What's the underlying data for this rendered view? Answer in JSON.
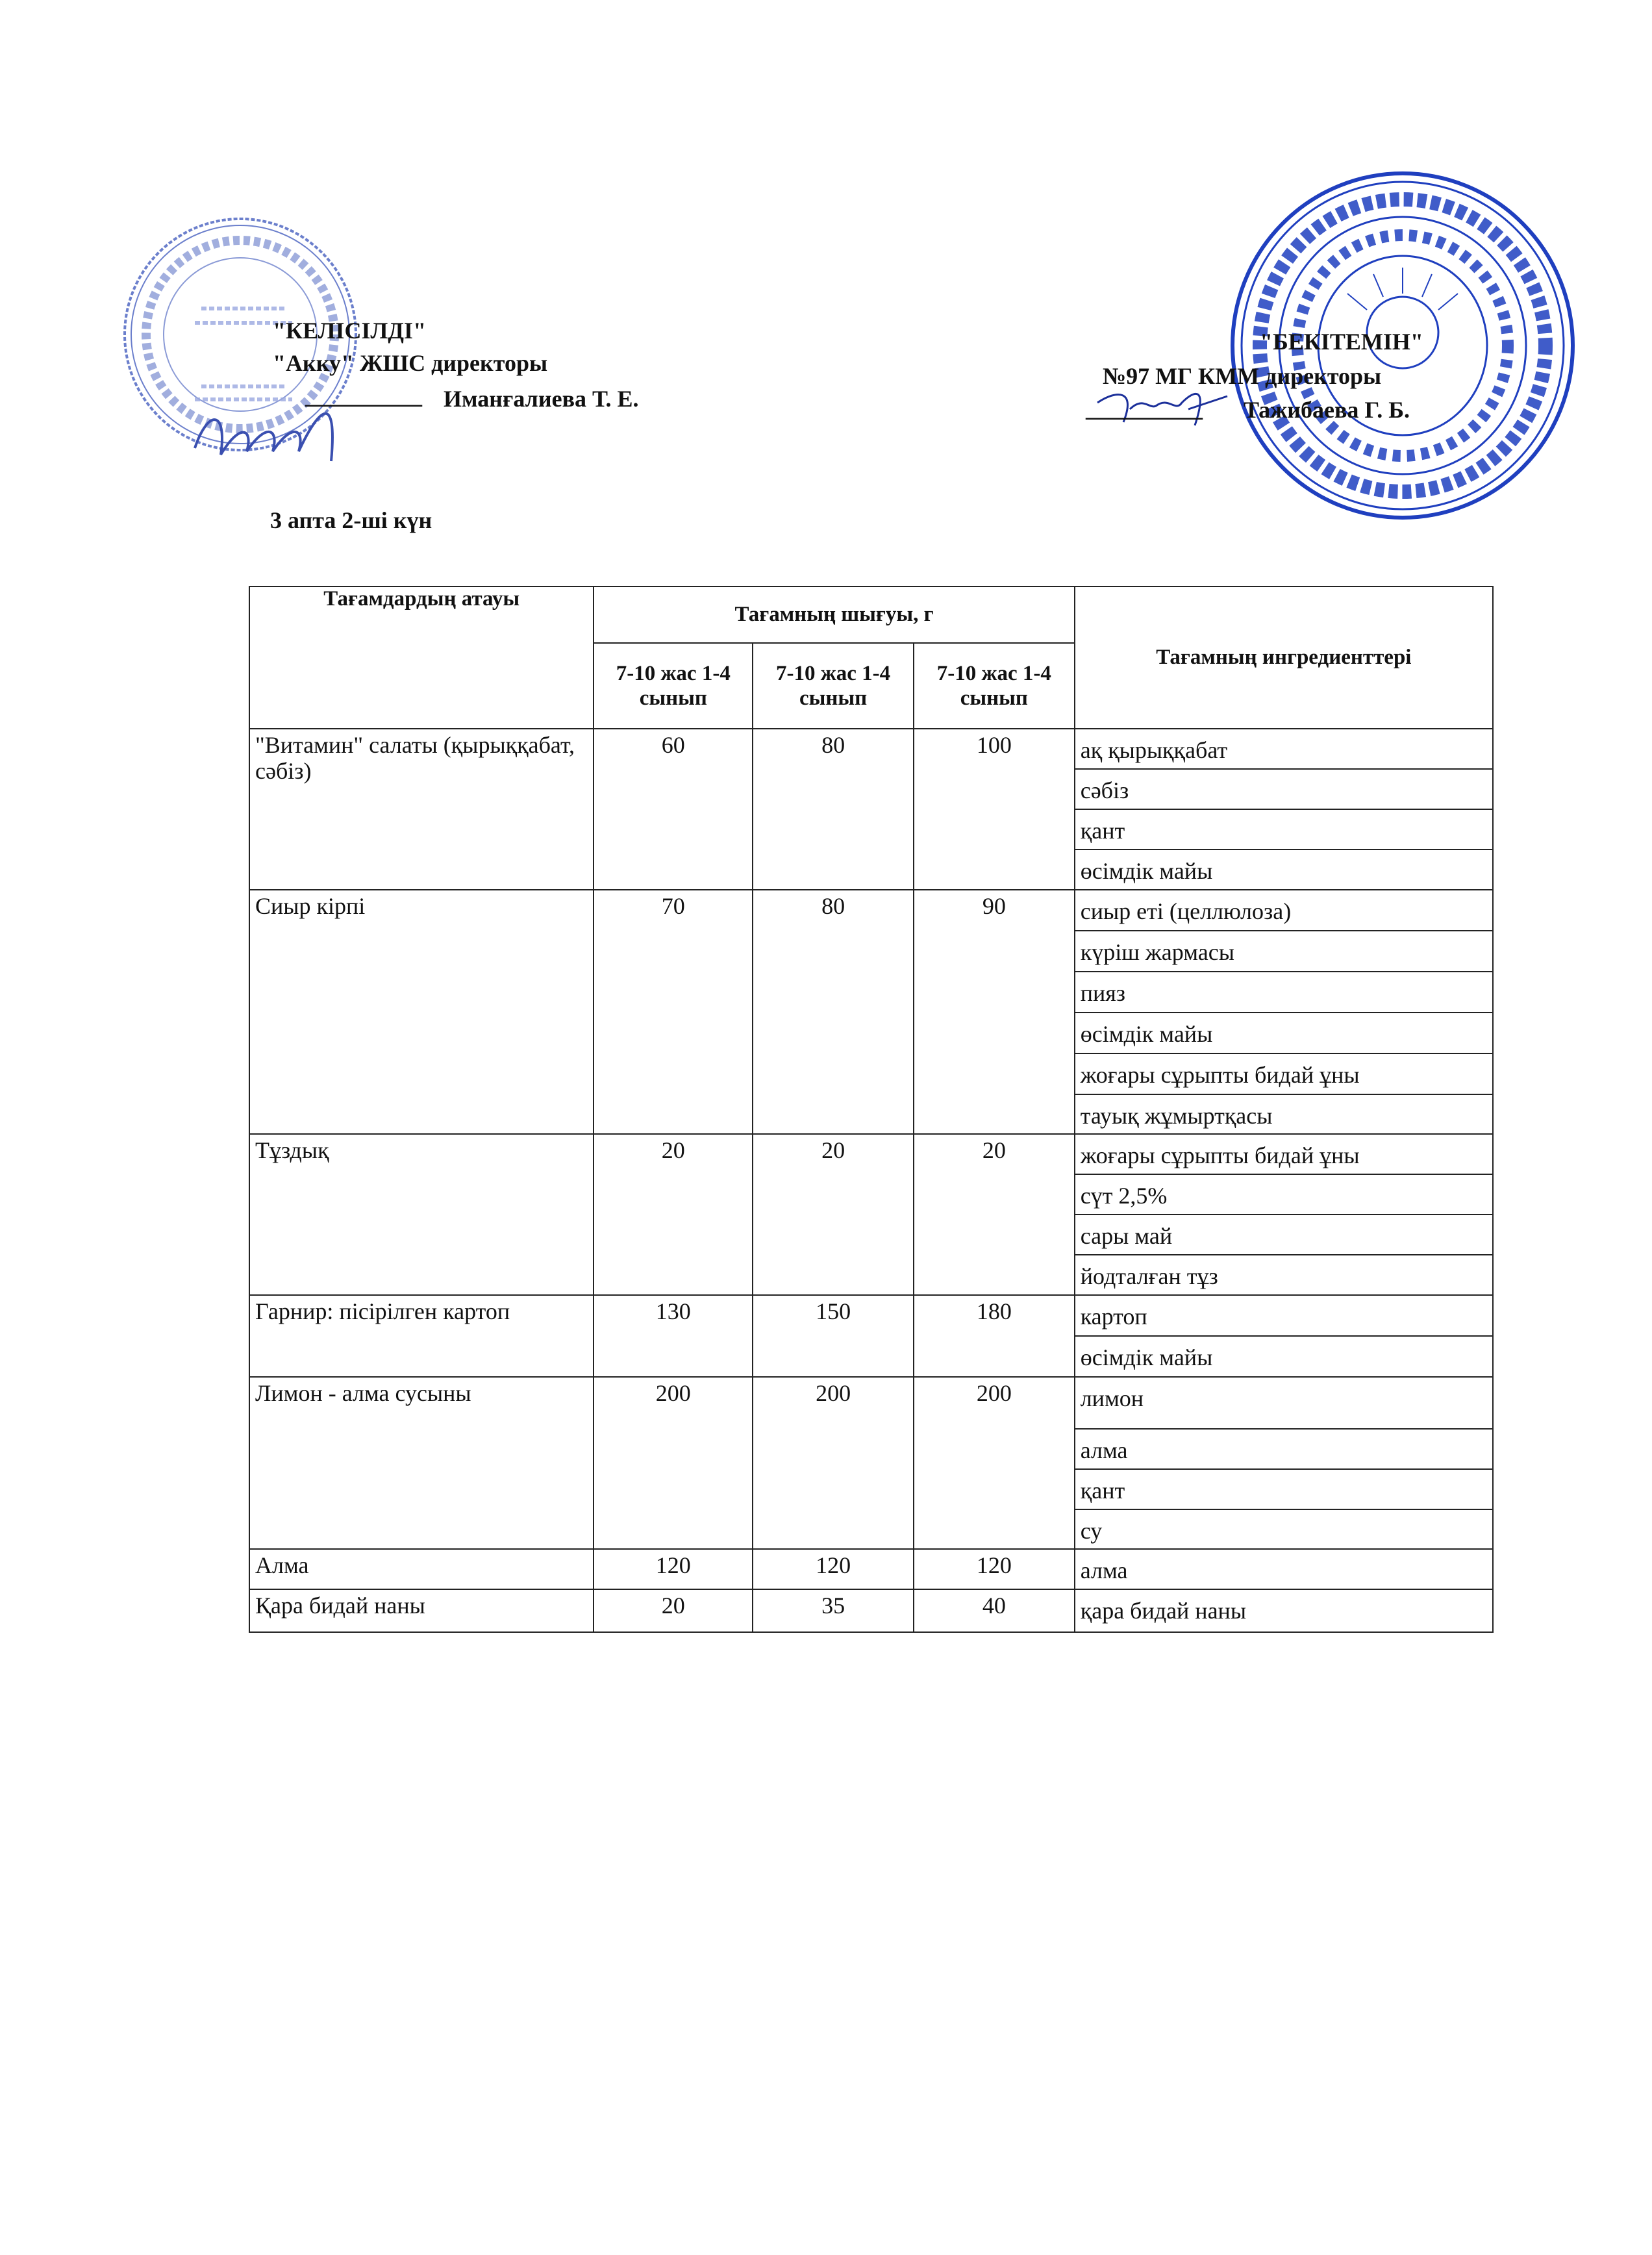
{
  "approval_left": {
    "title": "\"КЕЛІСІЛДІ\"",
    "position": "\"Акку\" ЖШС директоры",
    "signature_line": "__________",
    "name": "Иманғалиева Т. Е.",
    "stamp_text": [
      "ҚАЗАҚСТАН РЕСПУБЛИКАСЫ АЛМАТЫ ҚАЛАСЫ",
      "ГОРОД АЛМАТЫ",
      "БСН 171240003093",
      "Жауапкершілігі шектеулі серіктестігі",
      "Аққу.kz",
      "Товарищество с ограниченной ответственностью"
    ],
    "stamp_color": "#5a6fc0"
  },
  "approval_right": {
    "title": "\"БЕКІТЕМІН\"",
    "position": "№97 МГ КММ директоры",
    "signature_line": "__________",
    "name": "Тажибаева Г. Б.",
    "stamp_text": [
      "АЛМАТЫ ҚАЛАСЫ БІЛІМ БАСҚАРМАСЫНЫҢ «№97 МЕКТЕП-ГИМНАЗИЯСЫ»",
      "КОММУНАЛДЫҚ МЕМЛЕКЕТТІК МЕКЕМЕСІ",
      "ҚАЗАҚСТАН РЕСПУБЛИКАСЫ АЛМАТЫ ҚАЛАСЫ"
    ],
    "stamp_color": "#1f3fbf"
  },
  "day_label": "3 апта 2-ші күн",
  "table": {
    "headers": {
      "dish_name": "Тағамдардың атауы",
      "yield": "Тағамның шығуы, г",
      "yield_cols": [
        "7-10 жас 1-4 сынып",
        "7-10 жас 1-4 сынып",
        "7-10 жас 1-4 сынып"
      ],
      "ingredients": "Тағамның ингредиенттері"
    },
    "rows": [
      {
        "dish": "\"Витамин\" салаты (қырыққабат, сәбіз)",
        "yields": [
          "60",
          "80",
          "100"
        ],
        "ingredients": [
          "ақ қырыққабат",
          "сәбіз",
          "қант",
          "өсімдік майы"
        ]
      },
      {
        "dish": "Сиыр кірпі",
        "yields": [
          "70",
          "80",
          "90"
        ],
        "ingredients": [
          "сиыр еті (целлюлоза)",
          "күріш жармасы",
          "пияз",
          "өсімдік майы",
          "жоғары сұрыпты бидай ұны",
          "тауық жұмыртқасы"
        ]
      },
      {
        "dish": "Тұздық",
        "yields": [
          "20",
          "20",
          "20"
        ],
        "ingredients": [
          "жоғары сұрыпты бидай ұны",
          "сүт 2,5%",
          "сары май",
          "йодталған тұз"
        ]
      },
      {
        "dish": "Гарнир: пісірілген картоп",
        "yields": [
          "130",
          "150",
          "180"
        ],
        "ingredients": [
          "картоп",
          "өсімдік майы"
        ]
      },
      {
        "dish": "Лимон - алма сусыны",
        "yields": [
          "200",
          "200",
          "200"
        ],
        "ingredients": [
          "лимон",
          "алма",
          "қант",
          "су"
        ]
      },
      {
        "dish": "Алма",
        "yields": [
          "120",
          "120",
          "120"
        ],
        "ingredients": [
          "алма"
        ]
      },
      {
        "dish": "Қара бидай наны",
        "yields": [
          "20",
          "35",
          "40"
        ],
        "ingredients": [
          "қара бидай наны"
        ]
      }
    ]
  }
}
